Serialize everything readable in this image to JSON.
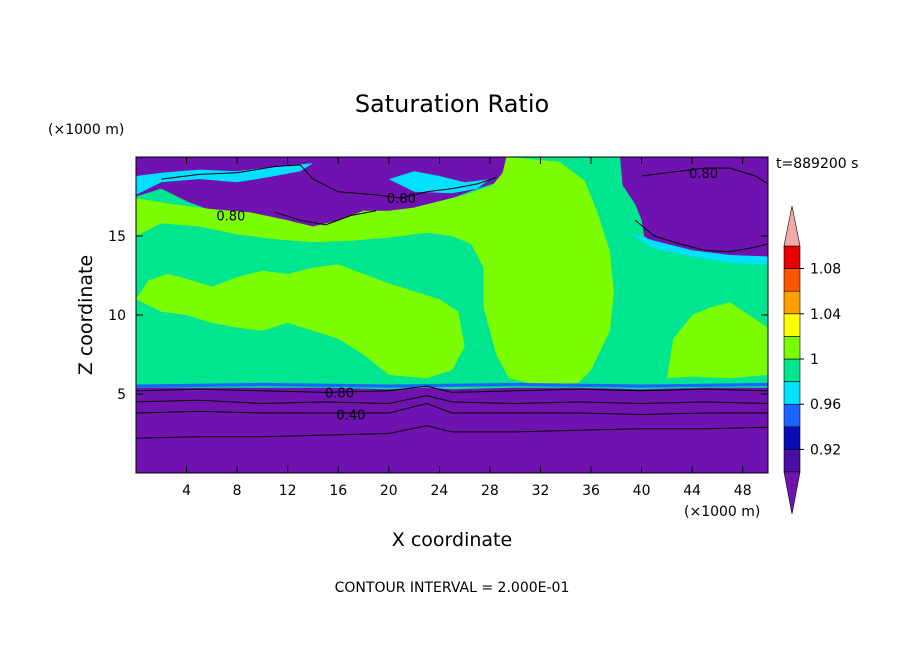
{
  "chart_data": {
    "type": "heatmap",
    "title": "Saturation Ratio",
    "xlabel": "X coordinate",
    "ylabel": "Z coordinate",
    "x_unit": "(×1000 m)",
    "y_unit": "(×1000 m)",
    "time_label": "t=889200 s",
    "footer": "CONTOUR INTERVAL = 2.000E-01",
    "xlim": [
      0,
      50
    ],
    "ylim": [
      0,
      20
    ],
    "x_ticks": [
      4,
      8,
      12,
      16,
      20,
      24,
      28,
      32,
      36,
      40,
      44,
      48
    ],
    "y_ticks": [
      5,
      10,
      15
    ],
    "colorbar": {
      "levels": [
        0.9,
        0.92,
        0.94,
        0.96,
        0.98,
        1.0,
        1.02,
        1.04,
        1.06,
        1.08,
        1.1
      ],
      "tick_labels": [
        "0.92",
        "0.96",
        "1",
        "1.04",
        "1.08"
      ],
      "tick_values": [
        0.92,
        0.96,
        1.0,
        1.04,
        1.08
      ],
      "colors": [
        "#4b0fa6",
        "#0a0ab8",
        "#1a64ff",
        "#00e0ff",
        "#00e690",
        "#7cfc00",
        "#ffff00",
        "#ffa000",
        "#ff5500",
        "#e60000"
      ],
      "under_color": "#7012b0",
      "over_color": "#f4a8a8"
    },
    "colors": {
      "dry": "#7012b0",
      "near_saturated": "#00e690",
      "saturated": "#7cfc00",
      "cyan": "#00e0ff",
      "blue": "#1a64ff"
    },
    "contour_labels": [
      {
        "text": "0.80",
        "x": 44.9,
        "y": 18.9
      },
      {
        "text": "0.80",
        "x": 21.0,
        "y": 17.3
      },
      {
        "text": "0.80",
        "x": 7.5,
        "y": 16.2
      },
      {
        "text": "0.80",
        "x": 16.1,
        "y": 5.0
      },
      {
        "text": "0.40",
        "x": 17.0,
        "y": 3.6
      }
    ],
    "regions": {
      "upper_dry": [
        [
          [
            0,
            20
          ],
          [
            0,
            17.5
          ],
          [
            2,
            18.0
          ],
          [
            4,
            17.2
          ],
          [
            6,
            16.6
          ],
          [
            9,
            16.4
          ],
          [
            12,
            16.0
          ],
          [
            14,
            15.5
          ],
          [
            16,
            15.9
          ],
          [
            18,
            16.6
          ],
          [
            19,
            16.4
          ],
          [
            21,
            16.6
          ],
          [
            23,
            17.0
          ],
          [
            25,
            17.4
          ],
          [
            27,
            18.0
          ],
          [
            29,
            18.5
          ],
          [
            29.3,
            20
          ]
        ],
        [
          [
            38.3,
            20
          ],
          [
            38.5,
            18.2
          ],
          [
            39.5,
            17.0
          ],
          [
            40.0,
            16.0
          ],
          [
            40.2,
            15.0
          ],
          [
            41.0,
            14.5
          ],
          [
            43.0,
            14.0
          ],
          [
            45.0,
            13.6
          ],
          [
            47.0,
            13.4
          ],
          [
            48.5,
            13.5
          ],
          [
            50,
            13.5
          ],
          [
            50,
            20
          ]
        ]
      ],
      "lower_dry_top": [
        [
          0,
          5.4
        ],
        [
          5,
          5.4
        ],
        [
          10,
          5.4
        ],
        [
          15,
          5.4
        ],
        [
          20,
          5.3
        ],
        [
          23,
          5.4
        ],
        [
          25,
          5.3
        ],
        [
          30,
          5.4
        ],
        [
          35,
          5.4
        ],
        [
          40,
          5.3
        ],
        [
          45,
          5.4
        ],
        [
          50,
          5.4
        ]
      ],
      "green_upper": [
        [
          0,
          15.0
        ],
        [
          2,
          15.8
        ],
        [
          5,
          15.6
        ],
        [
          8,
          15.1
        ],
        [
          11,
          14.8
        ],
        [
          14,
          14.6
        ],
        [
          17,
          14.7
        ],
        [
          20,
          14.9
        ],
        [
          23,
          15.2
        ],
        [
          25,
          15.0
        ],
        [
          26.5,
          14.5
        ],
        [
          27.5,
          13.0
        ],
        [
          27.5,
          10.5
        ],
        [
          28.5,
          7.5
        ],
        [
          29.5,
          6.0
        ],
        [
          31,
          5.7
        ],
        [
          33,
          5.6
        ],
        [
          35,
          5.7
        ],
        [
          36,
          6.5
        ],
        [
          37.5,
          9.0
        ],
        [
          37.8,
          11.5
        ],
        [
          37.5,
          14.0
        ],
        [
          36.5,
          16.5
        ],
        [
          35.5,
          18.5
        ],
        [
          33.5,
          19.7
        ],
        [
          29.3,
          20
        ],
        [
          29.0,
          19.0
        ],
        [
          28.2,
          18.2
        ],
        [
          26,
          17.6
        ],
        [
          24,
          17.2
        ],
        [
          22,
          16.8
        ],
        [
          20,
          16.6
        ],
        [
          18,
          16.6
        ],
        [
          16,
          16.0
        ],
        [
          14,
          15.6
        ],
        [
          12,
          16.0
        ],
        [
          9,
          16.5
        ],
        [
          6,
          16.7
        ],
        [
          3,
          17.0
        ],
        [
          0,
          17.4
        ]
      ],
      "green_mid_left": [
        [
          0,
          11.0
        ],
        [
          1,
          12.2
        ],
        [
          2.5,
          12.6
        ],
        [
          4,
          12.3
        ],
        [
          6,
          11.8
        ],
        [
          8,
          12.4
        ],
        [
          10,
          12.8
        ],
        [
          12,
          12.6
        ],
        [
          14,
          13.0
        ],
        [
          16,
          13.2
        ],
        [
          18,
          12.6
        ],
        [
          20,
          12.0
        ],
        [
          22,
          11.5
        ],
        [
          24,
          11.0
        ],
        [
          25.5,
          10.2
        ],
        [
          26,
          8.0
        ],
        [
          25,
          6.5
        ],
        [
          23,
          6.0
        ],
        [
          20,
          6.2
        ],
        [
          18,
          7.5
        ],
        [
          16,
          8.5
        ],
        [
          14,
          9.0
        ],
        [
          12,
          9.5
        ],
        [
          10,
          9.0
        ],
        [
          8,
          9.2
        ],
        [
          6,
          9.5
        ],
        [
          4,
          10.0
        ],
        [
          2,
          10.2
        ]
      ],
      "green_right": [
        [
          42,
          6.0
        ],
        [
          42.5,
          8.5
        ],
        [
          44,
          10.0
        ],
        [
          45.5,
          10.5
        ],
        [
          47,
          10.8
        ],
        [
          48.5,
          10.0
        ],
        [
          50,
          9.2
        ],
        [
          50,
          6.2
        ],
        [
          47,
          6.0
        ],
        [
          44,
          6.1
        ]
      ],
      "cyan_patches": [
        [
          [
            0,
            17.6
          ],
          [
            2,
            18.4
          ],
          [
            5,
            18.6
          ],
          [
            8,
            18.4
          ],
          [
            11,
            18.8
          ],
          [
            13,
            19.1
          ],
          [
            14,
            19.6
          ],
          [
            11,
            19.4
          ],
          [
            8,
            19.1
          ],
          [
            5,
            19.2
          ],
          [
            2,
            19.0
          ],
          [
            0,
            18.8
          ]
        ],
        [
          [
            20,
            18.6
          ],
          [
            22,
            19.1
          ],
          [
            24,
            18.8
          ],
          [
            26,
            18.4
          ],
          [
            28,
            18.6
          ],
          [
            27,
            18.0
          ],
          [
            25,
            17.7
          ],
          [
            22,
            17.8
          ]
        ],
        [
          [
            39,
            15.2
          ],
          [
            41,
            14.2
          ],
          [
            44,
            13.7
          ],
          [
            47,
            13.3
          ],
          [
            50,
            13.2
          ],
          [
            50,
            13.7
          ],
          [
            47,
            13.8
          ],
          [
            44,
            14.1
          ],
          [
            41,
            14.7
          ]
        ]
      ],
      "blue_strip": [
        [
          0,
          5.4
        ],
        [
          10,
          5.5
        ],
        [
          20,
          5.4
        ],
        [
          30,
          5.5
        ],
        [
          40,
          5.4
        ],
        [
          50,
          5.5
        ],
        [
          50,
          5.7
        ],
        [
          40,
          5.6
        ],
        [
          30,
          5.7
        ],
        [
          20,
          5.6
        ],
        [
          10,
          5.7
        ],
        [
          0,
          5.6
        ]
      ]
    },
    "contour_lines": [
      {
        "level": 0.8,
        "points": [
          [
            0,
            5.2
          ],
          [
            5,
            5.3
          ],
          [
            10,
            5.2
          ],
          [
            15,
            5.1
          ],
          [
            20,
            5.2
          ],
          [
            23,
            5.5
          ],
          [
            25,
            5.1
          ],
          [
            30,
            5.2
          ],
          [
            35,
            5.3
          ],
          [
            40,
            5.2
          ],
          [
            45,
            5.3
          ],
          [
            50,
            5.2
          ]
        ]
      },
      {
        "level": 0.6,
        "points": [
          [
            0,
            4.5
          ],
          [
            5,
            4.6
          ],
          [
            10,
            4.4
          ],
          [
            15,
            4.5
          ],
          [
            20,
            4.4
          ],
          [
            23,
            4.9
          ],
          [
            25,
            4.5
          ],
          [
            30,
            4.4
          ],
          [
            35,
            4.5
          ],
          [
            40,
            4.4
          ],
          [
            45,
            4.5
          ],
          [
            50,
            4.4
          ]
        ]
      },
      {
        "level": 0.4,
        "points": [
          [
            0,
            3.8
          ],
          [
            5,
            3.9
          ],
          [
            10,
            3.8
          ],
          [
            15,
            3.8
          ],
          [
            20,
            3.8
          ],
          [
            23,
            4.4
          ],
          [
            25,
            3.8
          ],
          [
            30,
            3.8
          ],
          [
            35,
            3.8
          ],
          [
            40,
            3.7
          ],
          [
            45,
            3.8
          ],
          [
            50,
            3.8
          ]
        ]
      },
      {
        "level": 0.2,
        "points": [
          [
            0,
            2.2
          ],
          [
            5,
            2.3
          ],
          [
            10,
            2.3
          ],
          [
            15,
            2.4
          ],
          [
            20,
            2.5
          ],
          [
            23,
            3.0
          ],
          [
            25,
            2.6
          ],
          [
            30,
            2.6
          ],
          [
            35,
            2.7
          ],
          [
            40,
            2.8
          ],
          [
            45,
            2.8
          ],
          [
            50,
            2.9
          ]
        ]
      },
      {
        "level": 0.8,
        "points": [
          [
            2,
            18.6
          ],
          [
            5,
            18.9
          ],
          [
            8,
            19.0
          ],
          [
            11,
            19.4
          ],
          [
            13,
            19.5
          ],
          [
            14,
            18.6
          ],
          [
            16,
            17.8
          ],
          [
            19,
            17.6
          ],
          [
            21,
            17.4
          ],
          [
            23,
            17.8
          ],
          [
            25,
            18.0
          ],
          [
            27,
            18.3
          ],
          [
            28.5,
            18.7
          ]
        ]
      },
      {
        "level": 0.8,
        "points": [
          [
            11,
            16.5
          ],
          [
            13,
            16.0
          ],
          [
            15,
            15.7
          ],
          [
            17,
            16.3
          ],
          [
            19,
            16.6
          ]
        ]
      },
      {
        "level": 0.8,
        "points": [
          [
            40,
            18.8
          ],
          [
            42,
            19.0
          ],
          [
            45,
            19.3
          ],
          [
            47,
            19.3
          ],
          [
            49,
            18.8
          ],
          [
            50,
            18.3
          ]
        ]
      },
      {
        "level": 0.8,
        "points": [
          [
            39.5,
            16.0
          ],
          [
            41,
            15.0
          ],
          [
            43,
            14.5
          ],
          [
            45,
            14.1
          ],
          [
            47,
            14.0
          ],
          [
            49,
            14.3
          ],
          [
            50,
            14.5
          ]
        ]
      }
    ]
  }
}
